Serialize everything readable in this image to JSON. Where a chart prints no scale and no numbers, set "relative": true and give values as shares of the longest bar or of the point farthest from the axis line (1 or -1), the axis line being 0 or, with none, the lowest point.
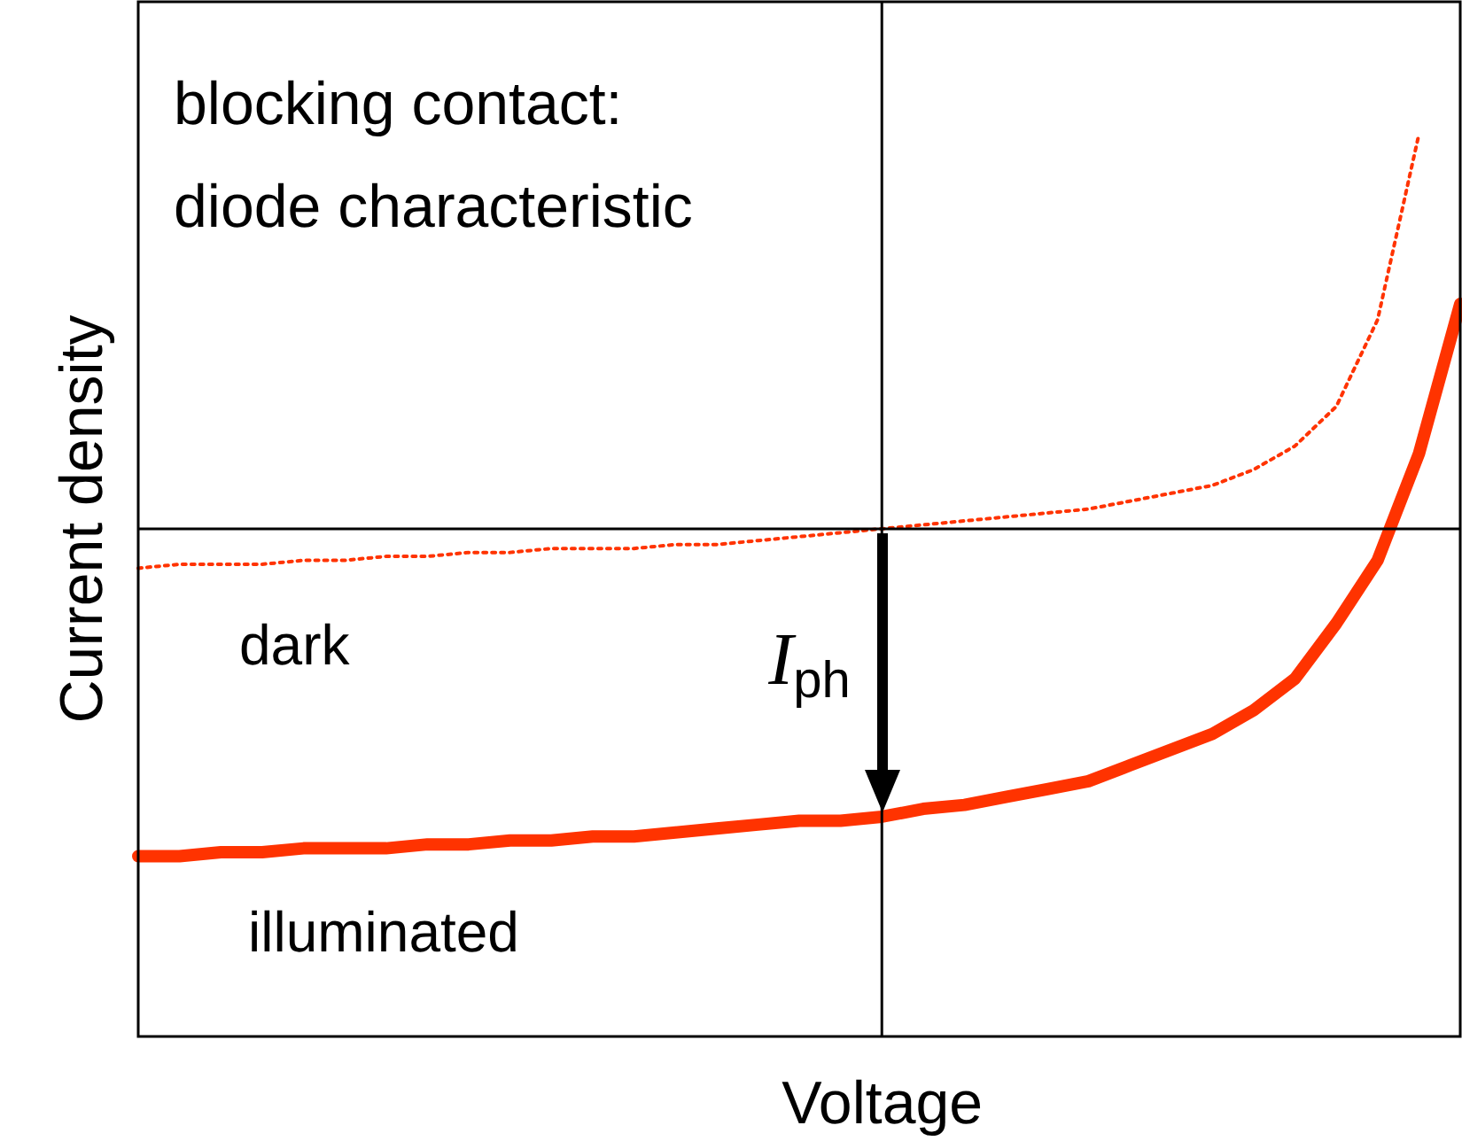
{
  "chart_data": {
    "type": "line",
    "relative": true,
    "xlabel": "Voltage",
    "ylabel": "Current density",
    "categories": [
      null,
      null,
      null,
      null,
      null,
      null,
      null,
      null,
      null,
      null,
      null,
      null,
      null,
      null,
      null,
      null,
      null,
      null,
      null,
      null,
      null,
      null,
      null,
      null,
      null,
      null,
      null,
      null,
      null,
      null,
      null,
      null,
      null
    ],
    "series": [
      {
        "name": "dark",
        "color": "#ff3300",
        "line_style": "dotted",
        "values": [
          -0.1,
          -0.09,
          -0.09,
          -0.09,
          -0.08,
          -0.08,
          -0.07,
          -0.07,
          -0.06,
          -0.06,
          -0.05,
          -0.05,
          -0.05,
          -0.04,
          -0.04,
          -0.03,
          -0.02,
          -0.01,
          0,
          0.01,
          0.02,
          0.03,
          0.04,
          0.05,
          0.07,
          0.09,
          0.11,
          0.15,
          0.21,
          0.31,
          0.53,
          1,
          null
        ]
      },
      {
        "name": "illuminated",
        "color": "#ff3300",
        "line_style": "solid",
        "values": [
          -0.83,
          -0.83,
          -0.82,
          -0.82,
          -0.81,
          -0.81,
          -0.81,
          -0.8,
          -0.8,
          -0.79,
          -0.79,
          -0.78,
          -0.78,
          -0.77,
          -0.76,
          -0.75,
          -0.74,
          -0.74,
          -0.73,
          -0.71,
          -0.7,
          -0.68,
          -0.66,
          -0.64,
          -0.6,
          -0.56,
          -0.52,
          -0.46,
          -0.38,
          -0.24,
          -0.08,
          0.19,
          0.57
        ]
      }
    ],
    "annotations": [
      "blocking contact:\ndiode characteristic",
      "I$_{ph}$"
    ],
    "legend": false,
    "marker": "none"
  }
}
